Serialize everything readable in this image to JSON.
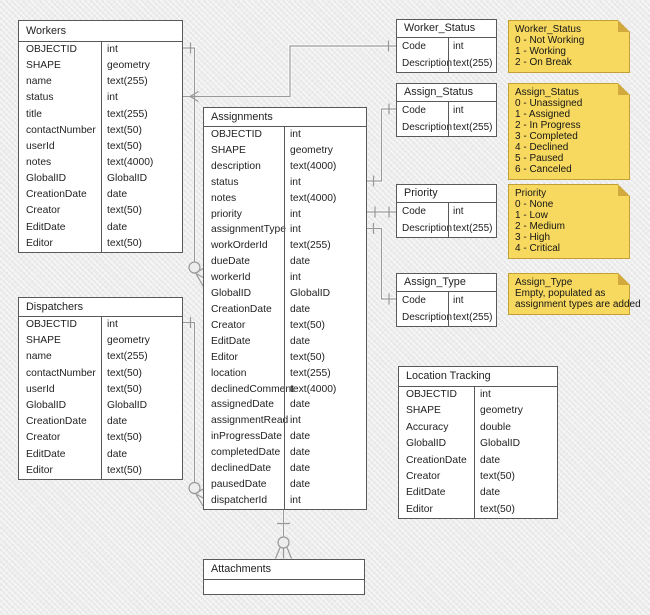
{
  "colors": {
    "note_fill": "#F7D95F",
    "note_border": "#C2A037",
    "note_fold": "#D2A93C",
    "table_border": "#595959",
    "connector": "#999999",
    "canvas_background": "#EDEDED"
  },
  "diagram": {
    "tables": [
      {
        "id": "workers",
        "title": "Workers",
        "fields": [
          [
            "OBJECTID",
            "int"
          ],
          [
            "SHAPE",
            "geometry"
          ],
          [
            "name",
            "text(255)"
          ],
          [
            "status",
            "int"
          ],
          [
            "title",
            "text(255)"
          ],
          [
            "contactNumber",
            "text(50)"
          ],
          [
            "userId",
            "text(50)"
          ],
          [
            "notes",
            "text(4000)"
          ],
          [
            "GlobalID",
            "GlobalID"
          ],
          [
            "CreationDate",
            "date"
          ],
          [
            "Creator",
            "text(50)"
          ],
          [
            "EditDate",
            "date"
          ],
          [
            "Editor",
            "text(50)"
          ]
        ]
      },
      {
        "id": "dispatchers",
        "title": "Dispatchers",
        "fields": [
          [
            "OBJECTID",
            "int"
          ],
          [
            "SHAPE",
            "geometry"
          ],
          [
            "name",
            "text(255)"
          ],
          [
            "contactNumber",
            "text(50)"
          ],
          [
            "userId",
            "text(50)"
          ],
          [
            "GlobalID",
            "GlobalID"
          ],
          [
            "CreationDate",
            "date"
          ],
          [
            "Creator",
            "text(50)"
          ],
          [
            "EditDate",
            "date"
          ],
          [
            "Editor",
            "text(50)"
          ]
        ]
      },
      {
        "id": "assignments",
        "title": "Assignments",
        "fields": [
          [
            "OBJECTID",
            "int"
          ],
          [
            "SHAPE",
            "geometry"
          ],
          [
            "description",
            "text(4000)"
          ],
          [
            "status",
            "int"
          ],
          [
            "notes",
            "text(4000)"
          ],
          [
            "priority",
            "int"
          ],
          [
            "assignmentType",
            "int"
          ],
          [
            "workOrderId",
            "text(255)"
          ],
          [
            "dueDate",
            "date"
          ],
          [
            "workerId",
            "int"
          ],
          [
            "GlobalID",
            "GlobalID"
          ],
          [
            "CreationDate",
            "date"
          ],
          [
            "Creator",
            "text(50)"
          ],
          [
            "EditDate",
            "date"
          ],
          [
            "Editor",
            "text(50)"
          ],
          [
            "location",
            "text(255)"
          ],
          [
            "declinedComment",
            "text(4000)"
          ],
          [
            "assignedDate",
            "date"
          ],
          [
            "assignmentRead",
            "int"
          ],
          [
            "inProgressDate",
            "date"
          ],
          [
            "completedDate",
            "date"
          ],
          [
            "declinedDate",
            "date"
          ],
          [
            "pausedDate",
            "date"
          ],
          [
            "dispatcherId",
            "int"
          ]
        ]
      },
      {
        "id": "worker-status",
        "title": "Worker_Status",
        "fields": [
          [
            "Code",
            "int"
          ],
          [
            "Description",
            "text(255)"
          ]
        ]
      },
      {
        "id": "assign-status",
        "title": "Assign_Status",
        "fields": [
          [
            "Code",
            "int"
          ],
          [
            "Description",
            "text(255)"
          ]
        ]
      },
      {
        "id": "priority",
        "title": "Priority",
        "fields": [
          [
            "Code",
            "int"
          ],
          [
            "Description",
            "text(255)"
          ]
        ]
      },
      {
        "id": "assign-type",
        "title": "Assign_Type",
        "fields": [
          [
            "Code",
            "int"
          ],
          [
            "Description",
            "text(255)"
          ]
        ]
      },
      {
        "id": "location-tracking",
        "title": "Location Tracking",
        "fields": [
          [
            "OBJECTID",
            "int"
          ],
          [
            "SHAPE",
            "geometry"
          ],
          [
            "Accuracy",
            "double"
          ],
          [
            "GlobalID",
            "GlobalID"
          ],
          [
            "CreationDate",
            "date"
          ],
          [
            "Creator",
            "text(50)"
          ],
          [
            "EditDate",
            "date"
          ],
          [
            "Editor",
            "text(50)"
          ]
        ]
      },
      {
        "id": "attachments",
        "title": "Attachments",
        "fields": []
      }
    ],
    "notes": [
      {
        "id": "worker-status-note",
        "title": "Worker_Status",
        "lines": [
          "0 - Not Working",
          "1 - Working",
          "2 - On Break"
        ]
      },
      {
        "id": "assign-status-note",
        "title": "Assign_Status",
        "lines": [
          "0 - Unassigned",
          "1 - Assigned",
          "2 - In Progress",
          "3 - Completed",
          "4 - Declined",
          "5 - Paused",
          "6 - Canceled"
        ]
      },
      {
        "id": "priority-note",
        "title": "Priority",
        "lines": [
          "0 - None",
          "1 - Low",
          "2 - Medium",
          "3 - High",
          "4 - Critical"
        ]
      },
      {
        "id": "assign-type-note",
        "title": "Assign_Type",
        "lines": [
          "Empty, populated as",
          "assignment types are added"
        ]
      }
    ]
  }
}
